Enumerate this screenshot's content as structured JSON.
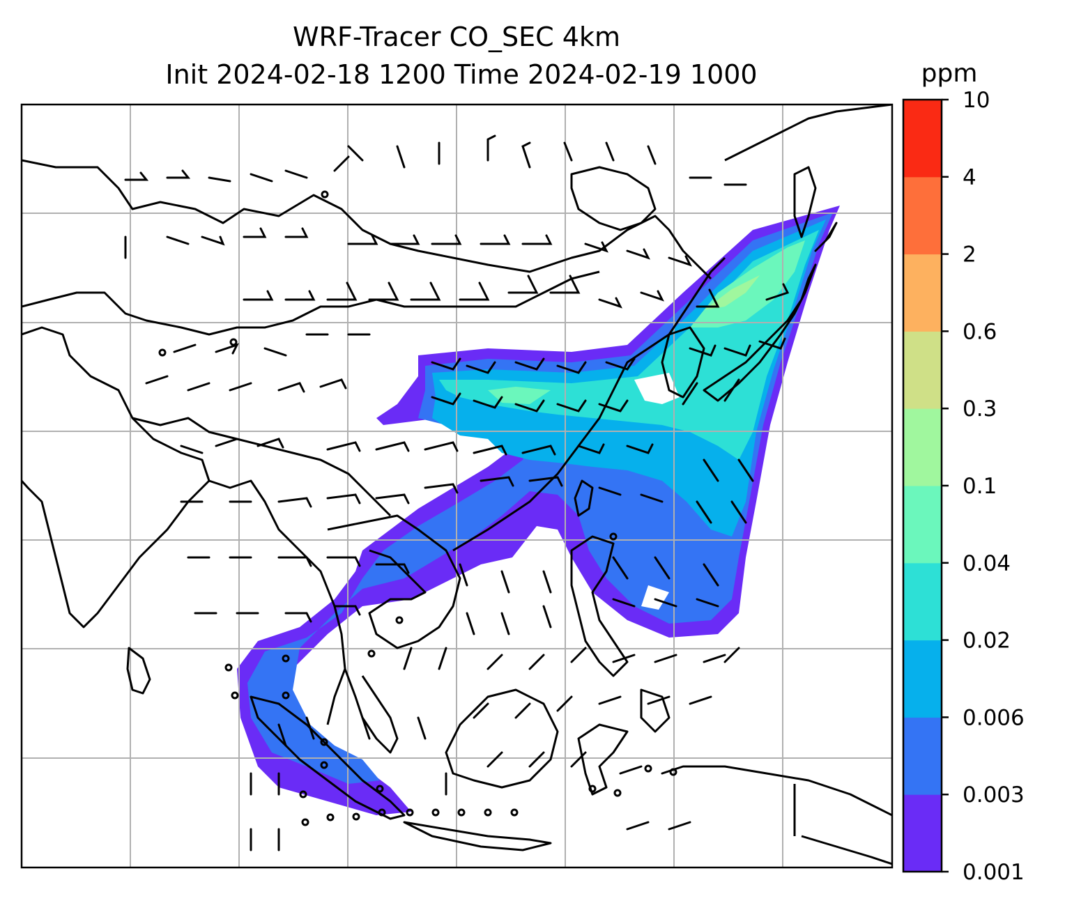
{
  "title": {
    "line1": "WRF-Tracer CO_SEC 4km",
    "line2": "Init 2024-02-18 1200 Time 2024-02-19 1000"
  },
  "colorbar": {
    "unit": "ppm",
    "levels": [
      "0.001",
      "0.003",
      "0.006",
      "0.02",
      "0.04",
      "0.1",
      "0.3",
      "0.6",
      "2",
      "4",
      "10"
    ],
    "colors": [
      "#6a2cf6",
      "#3474f4",
      "#06b0ec",
      "#2de0d6",
      "#6bf7bc",
      "#a0f79e",
      "#cfe087",
      "#fdb15f",
      "#fe6f3a",
      "#fa2a14"
    ]
  },
  "map": {
    "gridlines": true,
    "features": [
      "coastlines",
      "country-borders",
      "wind-barbs",
      "co-tracer-plume"
    ]
  }
}
